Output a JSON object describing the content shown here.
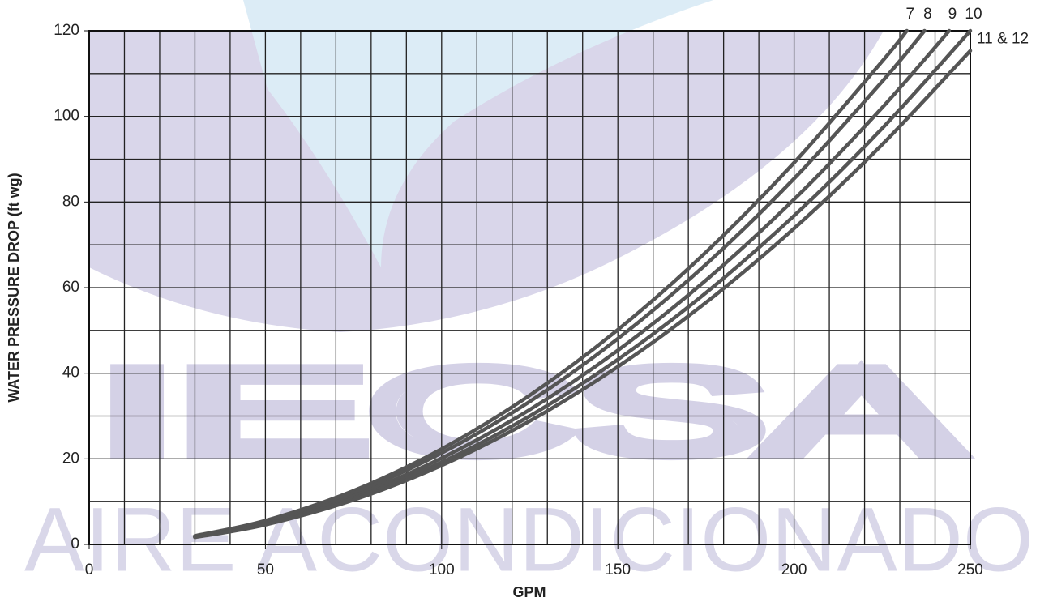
{
  "chart_data": {
    "type": "line",
    "watermark": [
      "IECSA",
      "AIRE ACONDICIONADO"
    ],
    "xlabel": "GPM",
    "ylabel": "WATER PRESSURE DROP (ft wg)",
    "xlim": [
      0,
      250
    ],
    "ylim": [
      0,
      120
    ],
    "xticks": [
      0,
      50,
      100,
      150,
      200,
      250
    ],
    "yticks": [
      0,
      20,
      40,
      60,
      80,
      100,
      120
    ],
    "x_grid": [
      0,
      10,
      20,
      30,
      40,
      50,
      60,
      70,
      80,
      90,
      100,
      110,
      120,
      130,
      140,
      150,
      160,
      170,
      180,
      190,
      200,
      210,
      220,
      230,
      240,
      250
    ],
    "y_grid": [
      0,
      10,
      20,
      30,
      40,
      50,
      60,
      70,
      80,
      90,
      100,
      110,
      120
    ],
    "grid": true,
    "series": [
      {
        "name": "7",
        "color": "#555555",
        "x": [
          30,
          50,
          75,
          100,
          125,
          150,
          175,
          200,
          225,
          232
        ],
        "values": [
          2.01,
          5.57,
          12.54,
          22.3,
          34.84,
          50.16,
          68.28,
          89.18,
          112.87,
          120
        ]
      },
      {
        "name": "8",
        "color": "#555555",
        "x": [
          30,
          50,
          75,
          100,
          125,
          150,
          175,
          200,
          225,
          237
        ],
        "values": [
          1.92,
          5.34,
          12.02,
          21.36,
          33.38,
          48.07,
          65.43,
          85.46,
          108.15,
          120
        ]
      },
      {
        "name": "9",
        "color": "#555555",
        "x": [
          30,
          50,
          75,
          100,
          125,
          150,
          175,
          200,
          225,
          244
        ],
        "values": [
          1.81,
          5.04,
          11.34,
          20.16,
          31.49,
          45.35,
          61.73,
          80.62,
          102.04,
          120
        ]
      },
      {
        "name": "10",
        "color": "#555555",
        "x": [
          30,
          50,
          75,
          100,
          125,
          150,
          175,
          200,
          225,
          250
        ],
        "values": [
          1.73,
          4.8,
          10.8,
          19.2,
          30,
          43.2,
          58.8,
          76.8,
          97.2,
          120
        ]
      },
      {
        "name": "11 & 12",
        "color": "#555555",
        "x": [
          30,
          50,
          75,
          100,
          125,
          150,
          175,
          200,
          225,
          250
        ],
        "values": [
          1.66,
          4.61,
          10.38,
          18.46,
          28.84,
          41.52,
          56.52,
          73.82,
          93.43,
          115.34
        ]
      }
    ]
  }
}
